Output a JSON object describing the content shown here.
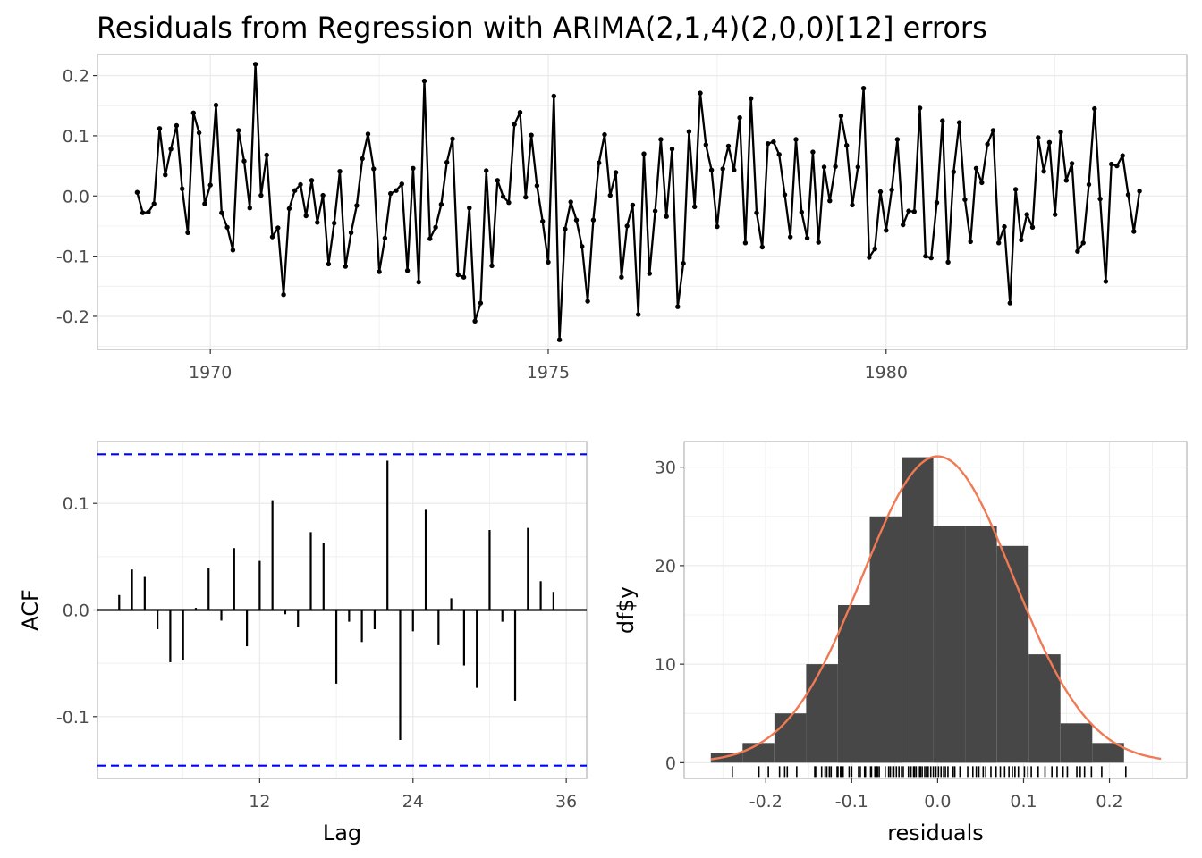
{
  "title": "Residuals from Regression with ARIMA(2,1,4)(2,0,0)[12] errors",
  "colors": {
    "line": "#000000",
    "ci": "#0000FF",
    "bar_fill": "#474747",
    "density": "#F07A53",
    "grid": "#ebebeb",
    "panel_border": "#b3b3b3"
  },
  "chart_data": [
    {
      "type": "line",
      "panel": "time-series",
      "xlim": [
        1968.33,
        1984.45
      ],
      "ylim": [
        -0.255,
        0.235
      ],
      "x_ticks": [
        1970,
        1975,
        1980
      ],
      "x_tick_labels": [
        "1970",
        "1975",
        "1980"
      ],
      "y_ticks": [
        -0.2,
        -0.1,
        0.0,
        0.1,
        0.2
      ],
      "y_tick_labels": [
        "-0.2",
        "-0.1",
        "0.0",
        "0.1",
        "0.2"
      ],
      "start": 1968.917,
      "frequency": 12,
      "values": [
        0.006,
        -0.028,
        -0.027,
        -0.013,
        0.112,
        0.035,
        0.078,
        0.117,
        0.012,
        -0.061,
        0.138,
        0.105,
        -0.013,
        0.018,
        0.151,
        -0.028,
        -0.052,
        -0.09,
        0.109,
        0.058,
        -0.02,
        0.219,
        0.001,
        0.068,
        -0.068,
        -0.053,
        -0.164,
        -0.021,
        0.009,
        0.019,
        -0.033,
        0.026,
        -0.044,
        0.001,
        -0.113,
        -0.045,
        0.041,
        -0.117,
        -0.061,
        -0.016,
        0.062,
        0.103,
        0.045,
        -0.126,
        -0.07,
        0.004,
        0.009,
        0.02,
        -0.124,
        0.046,
        -0.143,
        0.191,
        -0.071,
        -0.052,
        -0.014,
        0.056,
        0.095,
        -0.131,
        -0.135,
        -0.02,
        -0.208,
        -0.178,
        0.042,
        -0.116,
        0.026,
        -0.001,
        -0.011,
        0.119,
        0.139,
        -0.002,
        0.101,
        0.017,
        -0.042,
        -0.11,
        0.166,
        -0.239,
        -0.055,
        -0.01,
        -0.04,
        -0.084,
        -0.175,
        -0.04,
        0.055,
        0.102,
        0.001,
        0.039,
        -0.135,
        -0.05,
        -0.015,
        -0.197,
        0.07,
        -0.129,
        -0.025,
        0.094,
        -0.034,
        0.078,
        -0.184,
        -0.112,
        0.107,
        -0.018,
        0.171,
        0.085,
        0.043,
        -0.051,
        0.045,
        0.083,
        0.043,
        0.13,
        -0.078,
        0.162,
        -0.028,
        -0.085,
        0.087,
        0.09,
        0.069,
        0.002,
        -0.068,
        0.094,
        -0.027,
        -0.07,
        0.073,
        -0.077,
        0.048,
        -0.008,
        0.049,
        0.133,
        0.084,
        -0.015,
        0.048,
        0.179,
        -0.102,
        -0.088,
        0.007,
        -0.057,
        0.01,
        0.094,
        -0.048,
        -0.025,
        -0.026,
        0.146,
        -0.1,
        -0.103,
        -0.011,
        0.125,
        -0.11,
        0.04,
        0.122,
        -0.006,
        -0.076,
        0.046,
        0.022,
        0.086,
        0.109,
        -0.078,
        -0.051,
        -0.178,
        0.011,
        -0.073,
        -0.031,
        -0.052,
        0.097,
        0.041,
        0.089,
        -0.031,
        0.106,
        0.026,
        0.054,
        -0.092,
        -0.078,
        0.019,
        0.145,
        -0.005,
        -0.142,
        0.053,
        0.05,
        0.067,
        0.002,
        -0.059,
        0.008
      ]
    },
    {
      "type": "bar",
      "panel": "acf",
      "xlabel": "Lag",
      "ylabel": "ACF",
      "xlim": [
        -0.7,
        37.6
      ],
      "ylim": [
        -0.158,
        0.158
      ],
      "x_ticks": [
        12,
        24,
        36
      ],
      "x_tick_labels": [
        "12",
        "24",
        "36"
      ],
      "y_ticks": [
        -0.1,
        0.0,
        0.1
      ],
      "y_tick_labels": [
        "-0.1",
        "0.0",
        "0.1"
      ],
      "ci": 0.146,
      "lags": [
        1,
        2,
        3,
        4,
        5,
        6,
        7,
        8,
        9,
        10,
        11,
        12,
        13,
        14,
        15,
        16,
        17,
        18,
        19,
        20,
        21,
        22,
        23,
        24,
        25,
        26,
        27,
        28,
        29,
        30,
        31,
        32,
        33,
        34,
        35,
        36
      ],
      "values": [
        0.014,
        0.038,
        0.031,
        -0.018,
        -0.049,
        -0.047,
        0.002,
        0.039,
        -0.01,
        0.058,
        -0.034,
        0.046,
        0.103,
        -0.004,
        -0.016,
        0.073,
        0.063,
        -0.069,
        -0.011,
        -0.03,
        -0.018,
        0.14,
        -0.122,
        -0.02,
        0.094,
        -0.033,
        0.011,
        -0.052,
        -0.073,
        0.075,
        -0.011,
        -0.085,
        0.077,
        0.027,
        0.017,
        0.0
      ]
    },
    {
      "type": "bar",
      "panel": "histogram",
      "xlabel": "residuals",
      "ylabel": "df$y",
      "xlim": [
        -0.295,
        0.29
      ],
      "ylim": [
        -1.6,
        32.6
      ],
      "x_ticks": [
        -0.2,
        -0.1,
        0.0,
        0.1,
        0.2
      ],
      "x_tick_labels": [
        "-0.2",
        "-0.1",
        "0.0",
        "0.1",
        "0.2"
      ],
      "y_ticks": [
        0,
        10,
        20,
        30
      ],
      "y_tick_labels": [
        "0",
        "10",
        "20",
        "30"
      ],
      "bin_width": 0.037,
      "bin_left_edges": [
        -0.264,
        -0.227,
        -0.19,
        -0.153,
        -0.116,
        -0.079,
        -0.042,
        -0.005,
        0.032,
        0.069,
        0.106,
        0.143,
        0.18
      ],
      "counts": [
        1,
        2,
        5,
        10,
        16,
        25,
        31,
        24,
        24,
        22,
        11,
        4,
        2
      ],
      "density_curve": {
        "mean": 0.0,
        "sd": 0.088,
        "peak": 31.1,
        "x_range": [
          -0.264,
          0.26
        ]
      },
      "rug": [
        -0.239,
        -0.208,
        -0.197,
        -0.184,
        -0.178,
        -0.175,
        -0.164,
        -0.143,
        -0.142,
        -0.135,
        -0.131,
        -0.129,
        -0.126,
        -0.124,
        -0.117,
        -0.116,
        -0.113,
        -0.112,
        -0.11,
        -0.103,
        -0.1,
        -0.092,
        -0.09,
        -0.085,
        -0.084,
        -0.078,
        -0.077,
        -0.073,
        -0.071,
        -0.07,
        -0.068,
        -0.061,
        -0.057,
        -0.055,
        -0.052,
        -0.051,
        -0.048,
        -0.045,
        -0.042,
        -0.04,
        -0.034,
        -0.031,
        -0.028,
        -0.027,
        -0.025,
        -0.021,
        -0.02,
        -0.018,
        -0.015,
        -0.013,
        -0.011,
        -0.008,
        -0.005,
        -0.002,
        0.001,
        0.004,
        0.007,
        0.009,
        0.012,
        0.018,
        0.02,
        0.026,
        0.035,
        0.041,
        0.045,
        0.048,
        0.053,
        0.056,
        0.062,
        0.068,
        0.073,
        0.078,
        0.083,
        0.087,
        0.09,
        0.094,
        0.101,
        0.105,
        0.109,
        0.117,
        0.125,
        0.133,
        0.139,
        0.146,
        0.151,
        0.162,
        0.166,
        0.171,
        0.179,
        0.191,
        0.219
      ]
    }
  ]
}
